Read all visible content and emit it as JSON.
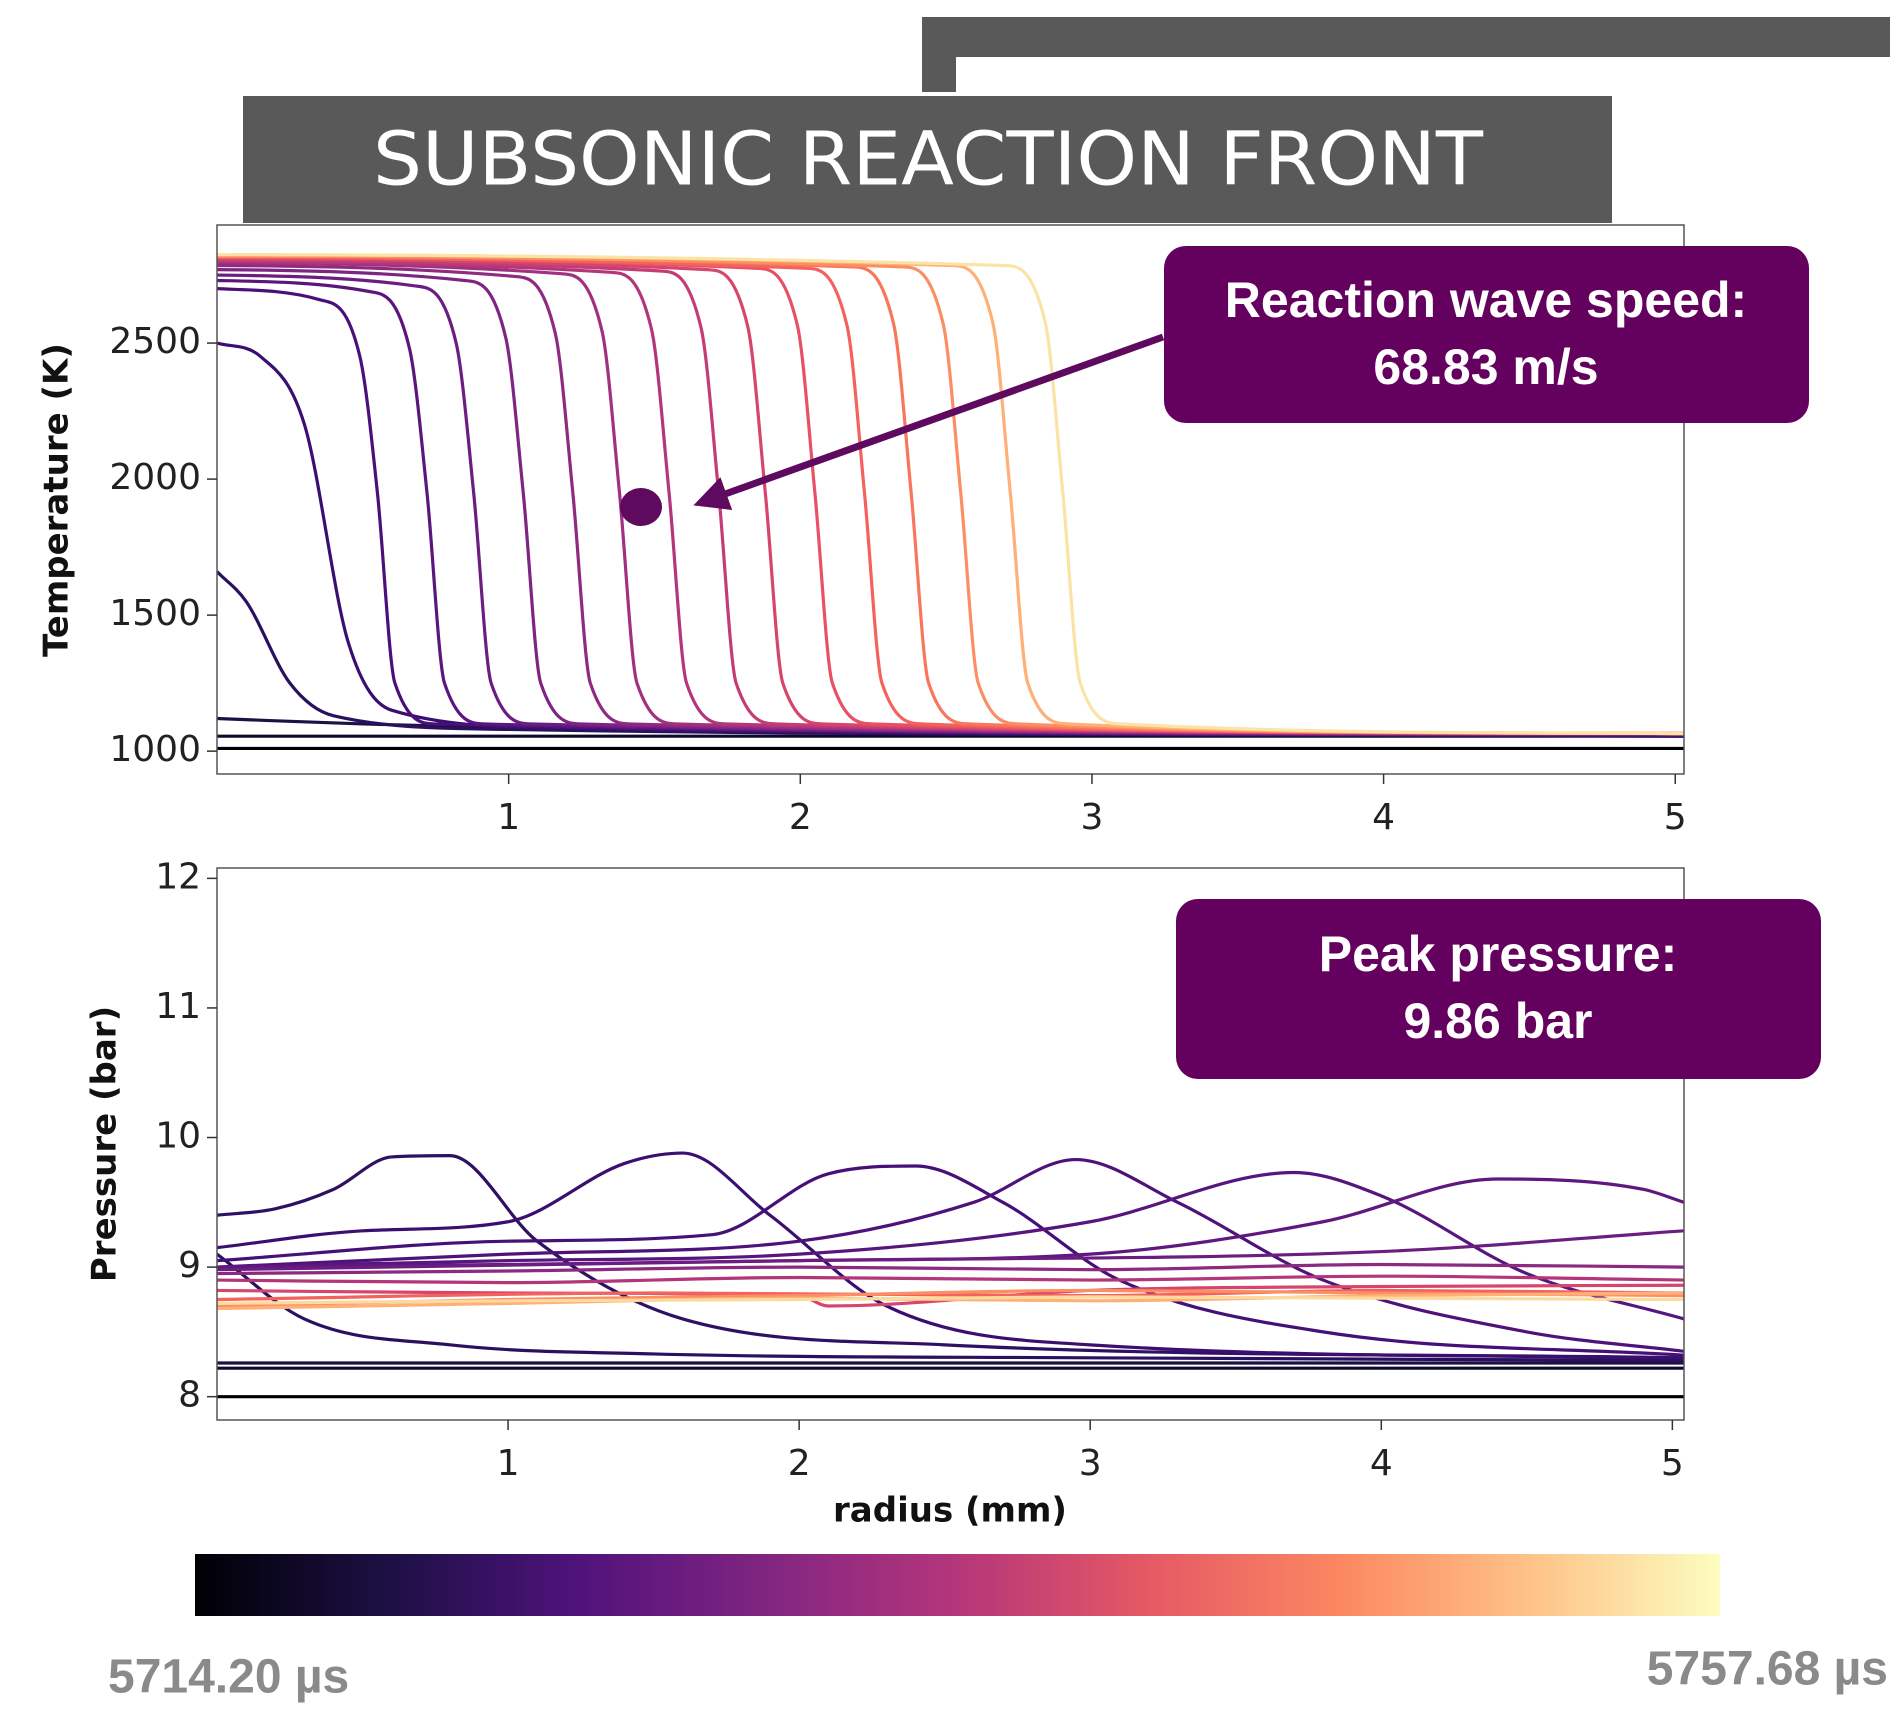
{
  "slide": {
    "title": "SUBSONIC REACTION FRONT",
    "colorbar": {
      "colors": [
        "#000004",
        "#1c1044",
        "#4f127b",
        "#812581",
        "#b5367a",
        "#e55964",
        "#fb8761",
        "#fec287",
        "#fcfdbf"
      ],
      "min_label": "5714.20 µs",
      "max_label": "5757.68 µs"
    }
  },
  "chart_data": [
    {
      "type": "line",
      "ylabel": "Temperature (K)",
      "annotation": [
        "Reaction wave speed:",
        "68.83 m/s"
      ],
      "xlim": [
        0,
        5.03
      ],
      "ylim": [
        916,
        2934
      ],
      "xticks": [
        1,
        2,
        3,
        4,
        5
      ],
      "yticks": [
        1000,
        1500,
        2000,
        2500
      ],
      "series": [
        {
          "color": "#000004",
          "x": [
            0,
            5.03
          ],
          "values": [
            1010,
            1010
          ]
        },
        {
          "color": "#0d0a2b",
          "x": [
            0,
            5.03
          ],
          "values": [
            1055,
            1055
          ]
        },
        {
          "color": "#1c1044",
          "x": [
            0,
            0.5,
            2,
            5.03
          ],
          "values": [
            1120,
            1100,
            1070,
            1060
          ]
        },
        {
          "color": "#2a1160",
          "x": [
            0,
            0.1,
            0.25,
            0.4,
            1,
            5.03
          ],
          "values": [
            1660,
            1550,
            1250,
            1130,
            1080,
            1055
          ]
        },
        {
          "color": "#3b0f70",
          "x": [
            0,
            0.15,
            0.3,
            0.45,
            0.6,
            1.2,
            5.03
          ],
          "values": [
            2500,
            2450,
            2200,
            1400,
            1150,
            1085,
            1055
          ]
        },
        {
          "color": "#4a1079",
          "x": [
            0,
            0.35,
            0.49,
            0.55,
            0.61,
            0.75,
            5.03
          ],
          "values": [
            2700,
            2660,
            2450,
            1950,
            1250,
            1100,
            1060
          ]
        },
        {
          "color": "#5b167e",
          "x": [
            0,
            0.52,
            0.66,
            0.72,
            0.78,
            0.92,
            5.03
          ],
          "values": [
            2730,
            2690,
            2480,
            1950,
            1250,
            1100,
            1060
          ]
        },
        {
          "color": "#6c1d81",
          "x": [
            0,
            0.68,
            0.82,
            0.88,
            0.94,
            1.08,
            5.03
          ],
          "values": [
            2750,
            2710,
            2500,
            1950,
            1250,
            1100,
            1062
          ]
        },
        {
          "color": "#7e2482",
          "x": [
            0,
            0.85,
            0.99,
            1.05,
            1.11,
            1.25,
            5.03
          ],
          "values": [
            2770,
            2730,
            2520,
            1950,
            1250,
            1100,
            1062
          ]
        },
        {
          "color": "#8f2a81",
          "x": [
            0,
            1.02,
            1.16,
            1.22,
            1.28,
            1.42,
            5.03
          ],
          "values": [
            2785,
            2745,
            2535,
            1950,
            1250,
            1100,
            1064
          ]
        },
        {
          "color": "#a1307e",
          "x": [
            0,
            1.18,
            1.32,
            1.38,
            1.44,
            1.58,
            5.03
          ],
          "values": [
            2795,
            2755,
            2545,
            1950,
            1250,
            1100,
            1065
          ]
        },
        {
          "color": "#b3367a",
          "x": [
            0,
            1.35,
            1.49,
            1.55,
            1.61,
            1.75,
            5.03
          ],
          "values": [
            2800,
            2760,
            2550,
            1950,
            1250,
            1100,
            1065
          ]
        },
        {
          "color": "#c43c75",
          "x": [
            0,
            1.52,
            1.66,
            1.72,
            1.78,
            1.92,
            5.03
          ],
          "values": [
            2805,
            2765,
            2555,
            1950,
            1250,
            1100,
            1065
          ]
        },
        {
          "color": "#d6456c",
          "x": [
            0,
            1.68,
            1.82,
            1.88,
            1.94,
            2.08,
            5.03
          ],
          "values": [
            2810,
            2770,
            2560,
            1950,
            1250,
            1100,
            1065
          ]
        },
        {
          "color": "#e65164",
          "x": [
            0,
            1.85,
            1.99,
            2.05,
            2.11,
            2.25,
            5.03
          ],
          "values": [
            2815,
            2775,
            2565,
            1950,
            1250,
            1100,
            1065
          ]
        },
        {
          "color": "#f3625d",
          "x": [
            0,
            2.02,
            2.16,
            2.22,
            2.28,
            2.42,
            5.03
          ],
          "values": [
            2815,
            2775,
            2565,
            1950,
            1250,
            1100,
            1065
          ]
        },
        {
          "color": "#f8765c",
          "x": [
            0,
            2.18,
            2.32,
            2.38,
            2.44,
            2.58,
            5.03
          ],
          "values": [
            2820,
            2780,
            2570,
            1950,
            1250,
            1100,
            1065
          ]
        },
        {
          "color": "#fc8e64",
          "x": [
            0,
            2.35,
            2.49,
            2.55,
            2.61,
            2.75,
            5.03
          ],
          "values": [
            2820,
            2780,
            2570,
            1950,
            1250,
            1100,
            1065
          ]
        },
        {
          "color": "#feb078",
          "x": [
            0,
            2.52,
            2.66,
            2.72,
            2.78,
            2.92,
            5.03
          ],
          "values": [
            2825,
            2785,
            2575,
            1950,
            1250,
            1100,
            1065
          ]
        },
        {
          "color": "#fbe3a6",
          "x": [
            0,
            2.7,
            2.84,
            2.9,
            2.96,
            3.1,
            5.03
          ],
          "values": [
            2825,
            2785,
            2575,
            1950,
            1250,
            1100,
            1065
          ]
        }
      ]
    },
    {
      "type": "line",
      "xlabel": "radius (mm)",
      "ylabel": "Pressure (bar)",
      "annotation": [
        "Peak pressure:",
        "9.86 bar"
      ],
      "xlim": [
        0,
        5.04
      ],
      "ylim": [
        7.82,
        12.08
      ],
      "xticks": [
        1,
        2,
        3,
        4,
        5
      ],
      "yticks": [
        8,
        9,
        10,
        11,
        12
      ],
      "series": [
        {
          "color": "#000004",
          "x": [
            0,
            5.04
          ],
          "values": [
            8.0,
            8.0
          ]
        },
        {
          "color": "#0d0a2b",
          "x": [
            0,
            5.04
          ],
          "values": [
            8.22,
            8.22
          ]
        },
        {
          "color": "#1c1044",
          "x": [
            0,
            5.04
          ],
          "values": [
            8.26,
            8.26
          ]
        },
        {
          "color": "#2a1160",
          "x": [
            0,
            0.3,
            0.8,
            1.5,
            3,
            5.04
          ],
          "values": [
            9.1,
            8.6,
            8.4,
            8.33,
            8.3,
            8.28
          ]
        },
        {
          "color": "#2f1163",
          "x": [
            0,
            0.2,
            0.4,
            0.6,
            0.8,
            1.1,
            1.6,
            2.5,
            5.04
          ],
          "values": [
            9.4,
            9.45,
            9.6,
            9.85,
            9.86,
            9.2,
            8.6,
            8.4,
            8.3
          ]
        },
        {
          "color": "#3b0f70",
          "x": [
            0,
            0.5,
            1,
            1.4,
            1.6,
            1.9,
            2.3,
            3,
            5.04
          ],
          "values": [
            9.15,
            9.28,
            9.35,
            9.8,
            9.88,
            9.4,
            8.7,
            8.4,
            8.3
          ]
        },
        {
          "color": "#451077",
          "x": [
            0,
            1,
            1.7,
            2.1,
            2.4,
            2.7,
            3.1,
            3.8,
            5.04
          ],
          "values": [
            9.05,
            9.2,
            9.25,
            9.72,
            9.78,
            9.5,
            8.9,
            8.5,
            8.32
          ]
        },
        {
          "color": "#4f127b",
          "x": [
            0,
            1,
            2,
            2.6,
            2.95,
            3.3,
            3.8,
            4.5,
            5.04
          ],
          "values": [
            9.0,
            9.1,
            9.2,
            9.5,
            9.83,
            9.5,
            8.9,
            8.5,
            8.35
          ]
        },
        {
          "color": "#57157e",
          "x": [
            0,
            1,
            2,
            3,
            3.7,
            4.0,
            4.5,
            5.04
          ],
          "values": [
            9.0,
            9.05,
            9.1,
            9.35,
            9.73,
            9.55,
            8.95,
            8.6
          ]
        },
        {
          "color": "#5f187f",
          "x": [
            0,
            1,
            2,
            3,
            3.8,
            4.4,
            4.9,
            5.04
          ],
          "values": [
            9.0,
            9.02,
            9.05,
            9.1,
            9.35,
            9.68,
            9.6,
            9.5
          ]
        },
        {
          "color": "#6c1d81",
          "x": [
            0,
            2,
            4,
            5.04
          ],
          "values": [
            8.98,
            9.05,
            9.12,
            9.28
          ]
        },
        {
          "color": "#8c2981",
          "x": [
            0,
            1,
            2,
            3,
            4,
            5.04
          ],
          "values": [
            8.95,
            8.97,
            9.0,
            8.98,
            9.02,
            9.0
          ]
        },
        {
          "color": "#b3367a",
          "x": [
            0,
            1,
            2,
            3,
            4,
            5.04
          ],
          "values": [
            8.9,
            8.88,
            8.92,
            8.9,
            8.93,
            8.9
          ]
        },
        {
          "color": "#d6456c",
          "x": [
            0,
            1,
            2,
            2.1,
            3,
            4,
            5.04
          ],
          "values": [
            8.82,
            8.8,
            8.78,
            8.7,
            8.82,
            8.85,
            8.86
          ]
        },
        {
          "color": "#f3625d",
          "x": [
            0,
            1.5,
            3,
            4,
            5.04
          ],
          "values": [
            8.75,
            8.8,
            8.78,
            8.82,
            8.8
          ]
        },
        {
          "color": "#fc8e64",
          "x": [
            0,
            1,
            2,
            3,
            4,
            5.04
          ],
          "values": [
            8.7,
            8.75,
            8.78,
            8.82,
            8.8,
            8.78
          ]
        },
        {
          "color": "#feb078",
          "x": [
            0,
            1,
            2,
            3,
            4,
            5.04
          ],
          "values": [
            8.68,
            8.72,
            8.76,
            8.74,
            8.78,
            8.8
          ]
        },
        {
          "color": "#fcd99c",
          "x": [
            0,
            1,
            2,
            3,
            4,
            5.04
          ],
          "values": [
            8.72,
            8.74,
            8.75,
            8.77,
            8.76,
            8.75
          ]
        }
      ]
    }
  ]
}
